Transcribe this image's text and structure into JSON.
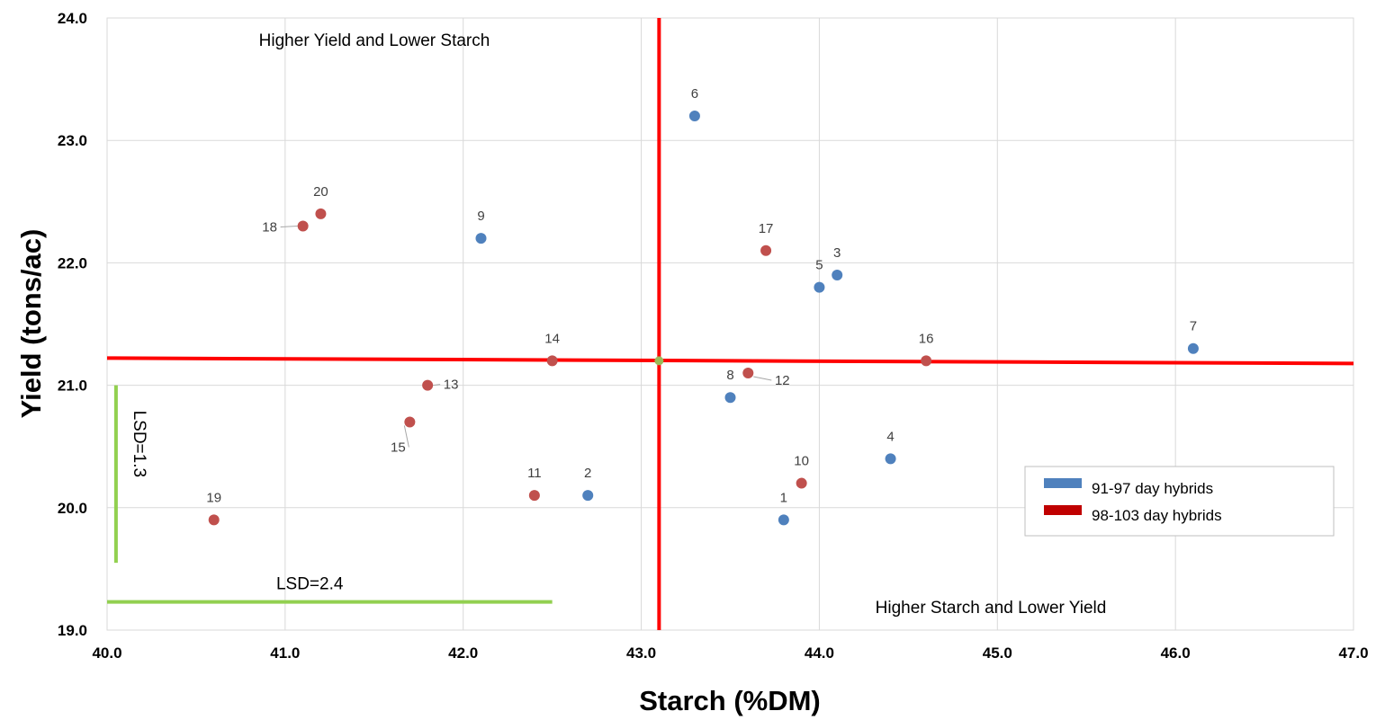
{
  "chart_data": {
    "type": "scatter",
    "xlabel": "Starch (%DM)",
    "ylabel": "Yield (tons/ac)",
    "xlim": [
      40.0,
      47.0
    ],
    "ylim": [
      19.0,
      24.0
    ],
    "x_ticks": [
      "40.0",
      "41.0",
      "42.0",
      "43.0",
      "44.0",
      "45.0",
      "46.0",
      "47.0"
    ],
    "y_ticks": [
      "19.0",
      "20.0",
      "21.0",
      "22.0",
      "23.0",
      "24.0"
    ],
    "grid": true,
    "legend_position": "right",
    "series": [
      {
        "name": "91-97 day hybrids",
        "color": "#4F81BD",
        "points": [
          {
            "label": "1",
            "x": 43.8,
            "y": 19.9
          },
          {
            "label": "2",
            "x": 42.7,
            "y": 20.1
          },
          {
            "label": "3",
            "x": 44.1,
            "y": 21.9
          },
          {
            "label": "4",
            "x": 44.4,
            "y": 20.4
          },
          {
            "label": "5",
            "x": 44.0,
            "y": 21.8
          },
          {
            "label": "6",
            "x": 43.3,
            "y": 23.2
          },
          {
            "label": "7",
            "x": 46.1,
            "y": 21.3
          },
          {
            "label": "8",
            "x": 43.5,
            "y": 20.9
          },
          {
            "label": "9",
            "x": 42.1,
            "y": 22.2
          }
        ]
      },
      {
        "name": "98-103 day hybrids",
        "color": "#C0504D",
        "points": [
          {
            "label": "10",
            "x": 43.9,
            "y": 20.2
          },
          {
            "label": "11",
            "x": 42.4,
            "y": 20.1
          },
          {
            "label": "12",
            "x": 43.6,
            "y": 21.1
          },
          {
            "label": "13",
            "x": 41.8,
            "y": 21.0
          },
          {
            "label": "14",
            "x": 42.5,
            "y": 21.2
          },
          {
            "label": "15",
            "x": 41.7,
            "y": 20.7
          },
          {
            "label": "16",
            "x": 44.6,
            "y": 21.2
          },
          {
            "label": "17",
            "x": 43.7,
            "y": 22.1
          },
          {
            "label": "18",
            "x": 41.1,
            "y": 22.3
          },
          {
            "label": "19",
            "x": 40.6,
            "y": 19.9
          },
          {
            "label": "20",
            "x": 41.2,
            "y": 22.4
          }
        ]
      }
    ],
    "mean_point": {
      "x": 43.1,
      "y": 21.2,
      "color": "#9BBB59"
    },
    "reference_lines": {
      "color": "#FF0000",
      "vertical_x": 43.1,
      "horizontal_y": 21.2
    },
    "lsd": {
      "color": "#92D050",
      "vertical": {
        "label": "LSD=1.3",
        "x": 40.05,
        "y_from": 19.55,
        "y_to": 21.0
      },
      "horizontal": {
        "label": "LSD=2.4",
        "y": 19.23,
        "x_from": 40.0,
        "x_to": 42.5
      }
    },
    "annotations": {
      "top_left": "Higher Yield and Lower Starch",
      "bottom_right": "Higher Starch and Lower Yield"
    }
  }
}
